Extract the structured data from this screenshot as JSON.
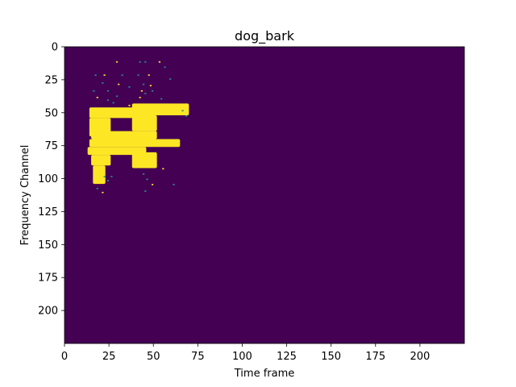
{
  "chart_data": {
    "type": "heatmap",
    "title": "dog_bark",
    "xlabel": "Time frame",
    "ylabel": "Frequency Channel",
    "xlim": [
      0,
      225
    ],
    "ylim": [
      225,
      0
    ],
    "x_ticks": [
      0,
      25,
      50,
      75,
      100,
      125,
      150,
      175,
      200
    ],
    "y_ticks": [
      0,
      25,
      50,
      75,
      100,
      125,
      150,
      175,
      200
    ],
    "colormap": "viridis",
    "value_range": [
      0,
      1
    ],
    "background_value": 0,
    "active_color": "#fde725",
    "edge_color": "#21918c",
    "background_color": "#440154",
    "active_regions": [
      {
        "x": [
          14,
          40
        ],
        "y": [
          46,
          54
        ]
      },
      {
        "x": [
          38,
          70
        ],
        "y": [
          43,
          52
        ]
      },
      {
        "x": [
          14,
          26
        ],
        "y": [
          54,
          68
        ]
      },
      {
        "x": [
          38,
          52
        ],
        "y": [
          52,
          64
        ]
      },
      {
        "x": [
          15,
          52
        ],
        "y": [
          64,
          70
        ]
      },
      {
        "x": [
          14,
          65
        ],
        "y": [
          70,
          76
        ]
      },
      {
        "x": [
          13,
          46
        ],
        "y": [
          76,
          82
        ]
      },
      {
        "x": [
          15,
          26
        ],
        "y": [
          82,
          90
        ]
      },
      {
        "x": [
          38,
          52
        ],
        "y": [
          80,
          92
        ]
      },
      {
        "x": [
          16,
          23
        ],
        "y": [
          90,
          104
        ]
      }
    ],
    "scattered_points": [
      [
        29,
        11
      ],
      [
        42,
        11
      ],
      [
        45,
        11
      ],
      [
        53,
        11
      ],
      [
        56,
        15
      ],
      [
        17,
        21
      ],
      [
        22,
        21
      ],
      [
        32,
        21
      ],
      [
        41,
        21
      ],
      [
        47,
        21
      ],
      [
        59,
        24
      ],
      [
        21,
        27
      ],
      [
        30,
        28
      ],
      [
        36,
        30
      ],
      [
        44,
        28
      ],
      [
        48,
        29
      ],
      [
        16,
        33
      ],
      [
        24,
        33
      ],
      [
        43,
        33
      ],
      [
        45,
        35
      ],
      [
        49,
        33
      ],
      [
        18,
        38
      ],
      [
        24,
        40
      ],
      [
        29,
        37
      ],
      [
        42,
        38
      ],
      [
        54,
        39
      ],
      [
        27,
        42
      ],
      [
        36,
        44
      ],
      [
        66,
        48
      ],
      [
        68,
        52
      ],
      [
        17,
        95
      ],
      [
        22,
        98
      ],
      [
        26,
        98
      ],
      [
        18,
        102
      ],
      [
        24,
        101
      ],
      [
        18,
        107
      ],
      [
        21,
        110
      ],
      [
        44,
        96
      ],
      [
        46,
        100
      ],
      [
        49,
        104
      ],
      [
        45,
        109
      ],
      [
        61,
        104
      ],
      [
        55,
        92
      ]
    ]
  }
}
